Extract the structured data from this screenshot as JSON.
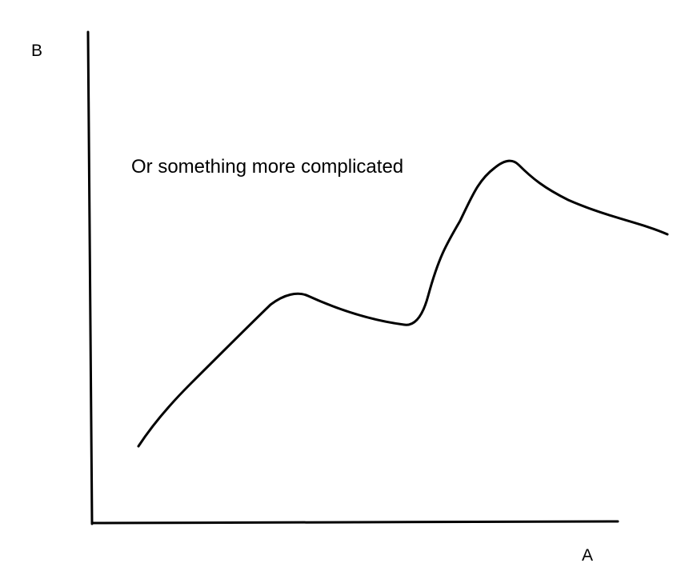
{
  "labels": {
    "y_axis": "B",
    "x_axis": "A",
    "caption": "Or something more complicated"
  },
  "colors": {
    "ink": "#000000",
    "background": "#ffffff"
  }
}
